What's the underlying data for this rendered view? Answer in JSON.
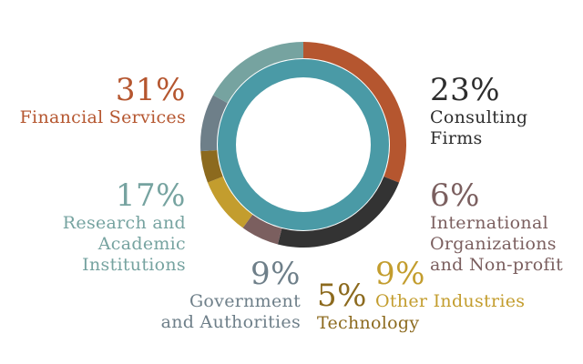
{
  "chart_data": {
    "type": "pie",
    "style": "donut",
    "title": "",
    "slices": [
      {
        "label_lines": [
          "Financial Services"
        ],
        "value": 31,
        "display": "31%",
        "color": "#b5562f"
      },
      {
        "label_lines": [
          "Consulting",
          "Firms"
        ],
        "value": 23,
        "display": "23%",
        "color": "#333333"
      },
      {
        "label_lines": [
          "International",
          "Organizations",
          "and Non-profit"
        ],
        "value": 6,
        "display": "6%",
        "color": "#7b5f5f"
      },
      {
        "label_lines": [
          "Other Industries"
        ],
        "value": 9,
        "display": "9%",
        "color": "#c39d2e"
      },
      {
        "label_lines": [
          "Technology"
        ],
        "value": 5,
        "display": "5%",
        "color": "#8c6a1e"
      },
      {
        "label_lines": [
          "Government",
          "and Authorities"
        ],
        "value": 9,
        "display": "9%",
        "color": "#6e7f89"
      },
      {
        "label_lines": [
          "Research and",
          "Academic",
          "Institutions"
        ],
        "value": 17,
        "display": "17%",
        "color": "#76a3a0"
      }
    ],
    "inner_ring_color": "#4a9aa6"
  }
}
